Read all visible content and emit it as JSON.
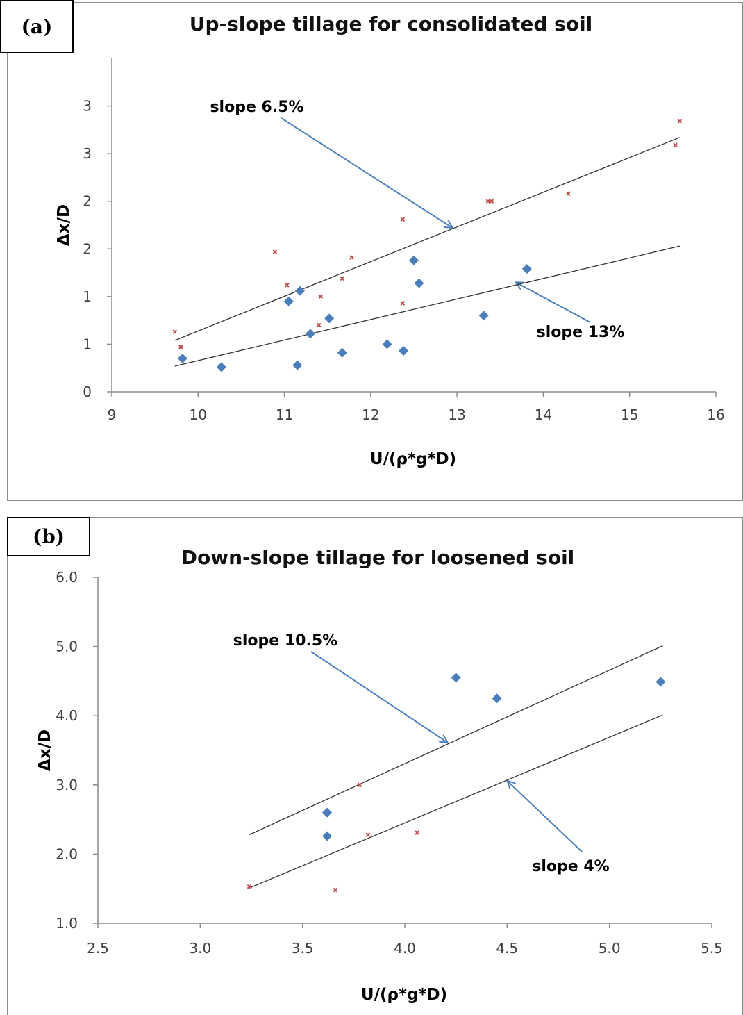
{
  "charts": [
    {
      "label": "(a)",
      "chart_data": {
        "type": "scatter",
        "title": "Up-slope tillage for consolidated soil",
        "xlabel": "U/(ρ*g*D)",
        "ylabel": "Δx/D",
        "xlim": [
          9,
          16
        ],
        "ylim": [
          0,
          3.5
        ],
        "x_ticks": [
          9,
          10,
          11,
          12,
          13,
          14,
          15,
          16
        ],
        "x_tick_labels": [
          "9",
          "10",
          "11",
          "12",
          "13",
          "14",
          "15",
          "16"
        ],
        "y_ticks": [
          0,
          0.5,
          1,
          1.5,
          2,
          2.5,
          3
        ],
        "y_tick_labels": [
          "0",
          "1",
          "1",
          "2",
          "2",
          "3",
          "3"
        ],
        "grid": false,
        "series": [
          {
            "marker": "diamond",
            "color": "#4a7ebb",
            "points": [
              [
                9.82,
                0.35
              ],
              [
                10.27,
                0.26
              ],
              [
                11.05,
                0.95
              ],
              [
                11.18,
                1.06
              ],
              [
                11.15,
                0.28
              ],
              [
                11.3,
                0.61
              ],
              [
                11.52,
                0.77
              ],
              [
                11.67,
                0.41
              ],
              [
                12.19,
                0.5
              ],
              [
                12.38,
                0.43
              ],
              [
                12.5,
                1.38
              ],
              [
                12.56,
                1.14
              ],
              [
                13.31,
                0.8
              ],
              [
                13.81,
                1.29
              ]
            ]
          },
          {
            "marker": "x",
            "color": "#c0504d",
            "points": [
              [
                9.73,
                0.63
              ],
              [
                9.8,
                0.47
              ],
              [
                10.89,
                1.47
              ],
              [
                11.03,
                1.12
              ],
              [
                11.4,
                0.7
              ],
              [
                11.42,
                1.0
              ],
              [
                11.67,
                1.19
              ],
              [
                11.78,
                1.41
              ],
              [
                12.37,
                0.93
              ],
              [
                12.37,
                1.81
              ],
              [
                13.36,
                2.0
              ],
              [
                13.4,
                2.0
              ],
              [
                14.29,
                2.08
              ],
              [
                15.53,
                2.59
              ],
              [
                15.58,
                2.84
              ]
            ]
          }
        ],
        "trendlines": [
          {
            "x": [
              9.73,
              15.58
            ],
            "y": [
              0.54,
              2.67
            ]
          },
          {
            "x": [
              9.73,
              15.58
            ],
            "y": [
              0.27,
              1.53
            ]
          }
        ],
        "annotations": [
          {
            "text": "slope 6.5%",
            "target": [
              12.95,
              1.72
            ]
          },
          {
            "text": "slope 13%",
            "target": [
              13.68,
              1.15
            ]
          }
        ]
      }
    },
    {
      "label": "(b)",
      "chart_data": {
        "type": "scatter",
        "title": "Down-slope tillage for loosened soil",
        "xlabel": "U/(ρ*g*D)",
        "ylabel": "Δx/D",
        "xlim": [
          2.5,
          5.5
        ],
        "ylim": [
          1.0,
          6.0
        ],
        "x_ticks": [
          2.5,
          3.0,
          3.5,
          4.0,
          4.5,
          5.0,
          5.5
        ],
        "x_tick_labels": [
          "2.5",
          "3.0",
          "3.5",
          "4.0",
          "4.5",
          "5.0",
          "5.5"
        ],
        "y_ticks": [
          1.0,
          2.0,
          3.0,
          4.0,
          5.0,
          6.0
        ],
        "y_tick_labels": [
          "1.0",
          "2.0",
          "3.0",
          "4.0",
          "5.0",
          "6.0"
        ],
        "grid": false,
        "series": [
          {
            "marker": "diamond",
            "color": "#4a7ebb",
            "points": [
              [
                3.62,
                2.6
              ],
              [
                3.62,
                2.26
              ],
              [
                4.25,
                4.55
              ],
              [
                4.45,
                4.25
              ],
              [
                5.25,
                4.49
              ]
            ]
          },
          {
            "marker": "x",
            "color": "#c0504d",
            "points": [
              [
                3.24,
                1.53
              ],
              [
                3.66,
                1.48
              ],
              [
                3.78,
                3.0
              ],
              [
                3.82,
                2.28
              ],
              [
                4.06,
                2.31
              ]
            ]
          }
        ],
        "trendlines": [
          {
            "x": [
              3.24,
              5.26
            ],
            "y": [
              2.28,
              5.01
            ]
          },
          {
            "x": [
              3.24,
              5.26
            ],
            "y": [
              1.51,
              4.01
            ]
          }
        ],
        "annotations": [
          {
            "text": "slope 10.5%",
            "target": [
              4.21,
              3.61
            ]
          },
          {
            "text": "slope 4%",
            "target": [
              4.5,
              3.06
            ]
          }
        ]
      }
    }
  ]
}
